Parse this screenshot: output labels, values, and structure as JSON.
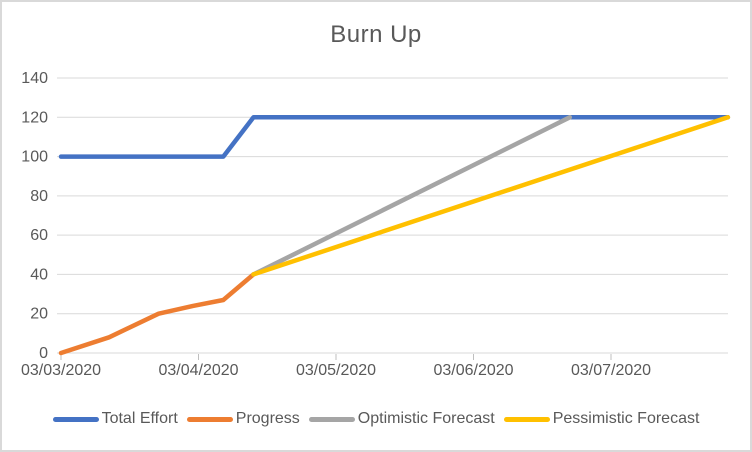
{
  "chart_data": {
    "type": "line",
    "title": "Burn Up",
    "x_axis": {
      "labels": [
        "03/03/2020",
        "03/04/2020",
        "03/05/2020",
        "03/06/2020",
        "03/07/2020"
      ],
      "label_positions_days": [
        0,
        1,
        2,
        3,
        4
      ],
      "min_days": 0,
      "max_days": 4.85,
      "unit": "days since 03/03/2020"
    },
    "y_axis": {
      "tick_values": [
        0,
        20,
        40,
        60,
        80,
        100,
        120,
        140
      ],
      "min": 0,
      "max": 140
    },
    "grid": "horizontal",
    "legend_position": "bottom",
    "series": [
      {
        "name": "Total Effort",
        "color": "#4472C4",
        "points": [
          [
            0,
            100
          ],
          [
            1.18,
            100
          ],
          [
            1.4,
            120
          ],
          [
            4.85,
            120
          ]
        ]
      },
      {
        "name": "Progress",
        "color": "#ED7D31",
        "points": [
          [
            0,
            0
          ],
          [
            0.35,
            8
          ],
          [
            0.71,
            20
          ],
          [
            0.96,
            24
          ],
          [
            1.18,
            27
          ],
          [
            1.4,
            40
          ]
        ]
      },
      {
        "name": "Optimistic Forecast",
        "color": "#A5A5A5",
        "points": [
          [
            1.4,
            40
          ],
          [
            3.7,
            120
          ]
        ]
      },
      {
        "name": "Pessimistic Forecast",
        "color": "#FFC000",
        "points": [
          [
            1.4,
            40
          ],
          [
            4.85,
            120
          ]
        ]
      }
    ]
  },
  "colors": {
    "grid": "#D9D9D9",
    "tick": "#BFBFBF",
    "axis_text": "#595959",
    "title_text": "#595959",
    "border": "#D9D9D9",
    "background": "#FFFFFF"
  }
}
